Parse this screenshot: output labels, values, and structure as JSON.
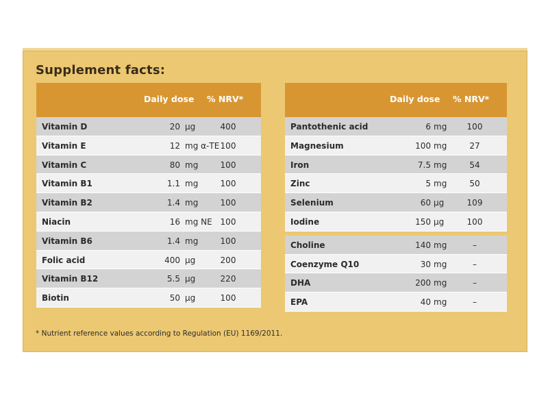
{
  "title": "Supplement facts:",
  "colors": {
    "box": "#ecc872",
    "header": "#d89633",
    "row_dark": "#d3d3d3",
    "row_light": "#f1f1f1"
  },
  "left_table": {
    "headers": {
      "dose": "Daily dose",
      "nrv": "% NRV*"
    },
    "rows": [
      {
        "name": "Vitamin D",
        "amount": "20",
        "unit": "µg",
        "nrv": "400"
      },
      {
        "name": "Vitamin E",
        "amount": "12",
        "unit": "mg α-TE",
        "nrv": "100"
      },
      {
        "name": "Vitamin C",
        "amount": "80",
        "unit": "mg",
        "nrv": "100"
      },
      {
        "name": "Vitamin B1",
        "amount": "1.1",
        "unit": "mg",
        "nrv": "100"
      },
      {
        "name": "Vitamin B2",
        "amount": "1.4",
        "unit": "mg",
        "nrv": "100"
      },
      {
        "name": "Niacin",
        "amount": "16",
        "unit": "mg NE",
        "nrv": "100"
      },
      {
        "name": "Vitamin B6",
        "amount": "1.4",
        "unit": "mg",
        "nrv": "100"
      },
      {
        "name": "Folic acid",
        "amount": "400",
        "unit": "µg",
        "nrv": "200"
      },
      {
        "name": "Vitamin B12",
        "amount": "5.5",
        "unit": "µg",
        "nrv": "220"
      },
      {
        "name": "Biotin",
        "amount": "50",
        "unit": "µg",
        "nrv": "100"
      }
    ]
  },
  "right_table": {
    "headers": {
      "dose": "Daily dose",
      "nrv": "% NRV*"
    },
    "rows_group1": [
      {
        "name": "Pantothenic acid",
        "amount": "6",
        "unit": "mg",
        "nrv": "100"
      },
      {
        "name": "Magnesium",
        "amount": "100",
        "unit": "mg",
        "nrv": "27"
      },
      {
        "name": "Iron",
        "amount": "7.5",
        "unit": "mg",
        "nrv": "54"
      },
      {
        "name": "Zinc",
        "amount": "5",
        "unit": "mg",
        "nrv": "50"
      },
      {
        "name": "Selenium",
        "amount": "60",
        "unit": "µg",
        "nrv": "109"
      },
      {
        "name": "Iodine",
        "amount": "150",
        "unit": "µg",
        "nrv": "100"
      }
    ],
    "rows_group2": [
      {
        "name": "Choline",
        "amount": "140",
        "unit": "mg",
        "nrv": "–"
      },
      {
        "name": "Coenzyme Q10",
        "amount": "30",
        "unit": "mg",
        "nrv": "–"
      },
      {
        "name": "DHA",
        "amount": "200",
        "unit": "mg",
        "nrv": "–"
      },
      {
        "name": "EPA",
        "amount": "40",
        "unit": "mg",
        "nrv": "–"
      }
    ]
  },
  "footnote": "* Nutrient reference values according to Regulation (EU) 1169/2011."
}
